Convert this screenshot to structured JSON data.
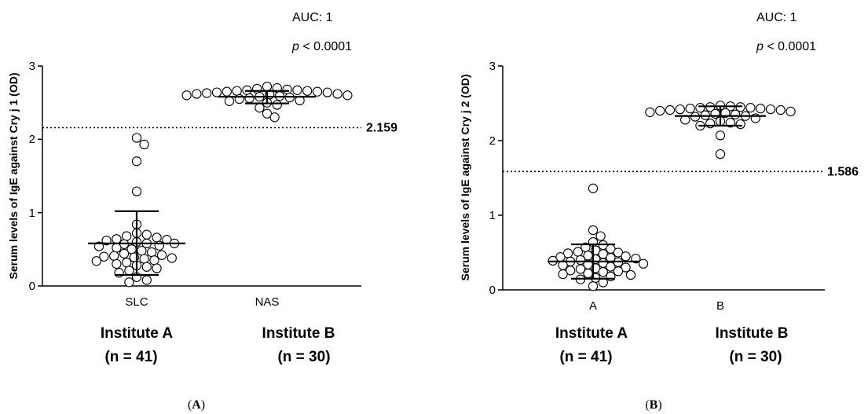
{
  "chart_data": [
    {
      "type": "scatter",
      "panel_label": "A",
      "ylabel": "Serum levels of IgE against Cry j 1 (OD)",
      "ylim": [
        0,
        3
      ],
      "yticks": [
        "0",
        "1",
        "2",
        "3"
      ],
      "categories": [
        "SLC",
        "NAS"
      ],
      "group_labels": [
        {
          "name": "Institute A",
          "n": "(n = 41)"
        },
        {
          "name": "Institute B",
          "n": "(n = 30)"
        }
      ],
      "auc": "AUC: 1",
      "p_prefix": "p",
      "p_rest": " < 0.0001",
      "cutoff": 2.159,
      "cutoff_label": "2.159",
      "summary": [
        {
          "mean": 0.58,
          "sd_low": 0.15,
          "sd_high": 1.02
        },
        {
          "mean": 2.58,
          "sd_low": 2.49,
          "sd_high": 2.66
        }
      ],
      "series": [
        {
          "values": [
            2.02,
            1.93,
            1.7,
            1.29,
            0.84,
            0.72,
            0.7,
            0.68,
            0.66,
            0.64,
            0.63,
            0.62,
            0.6,
            0.58,
            0.58,
            0.57,
            0.55,
            0.54,
            0.52,
            0.5,
            0.48,
            0.46,
            0.44,
            0.42,
            0.41,
            0.4,
            0.39,
            0.38,
            0.37,
            0.35,
            0.34,
            0.32,
            0.3,
            0.28,
            0.26,
            0.24,
            0.21,
            0.18,
            0.12,
            0.08,
            0.05
          ]
        },
        {
          "values": [
            2.72,
            2.7,
            2.69,
            2.68,
            2.67,
            2.67,
            2.66,
            2.66,
            2.65,
            2.65,
            2.64,
            2.64,
            2.63,
            2.62,
            2.62,
            2.61,
            2.6,
            2.6,
            2.59,
            2.58,
            2.57,
            2.56,
            2.55,
            2.53,
            2.52,
            2.5,
            2.47,
            2.43,
            2.35,
            2.3
          ]
        }
      ]
    },
    {
      "type": "scatter",
      "panel_label": "B",
      "ylabel": "Serum levels of IgE against Cry j 2 (OD)",
      "ylim": [
        0,
        3
      ],
      "yticks": [
        "0",
        "1",
        "2",
        "3"
      ],
      "categories": [
        "A",
        "B"
      ],
      "group_labels": [
        {
          "name": "Institute A",
          "n": "(n = 41)"
        },
        {
          "name": "Institute B",
          "n": "(n = 30)"
        }
      ],
      "auc": "AUC: 1",
      "p_prefix": "p",
      "p_rest": " < 0.0001",
      "cutoff": 1.586,
      "cutoff_label": "1.586",
      "summary": [
        {
          "mean": 0.38,
          "sd_low": 0.15,
          "sd_high": 0.61
        },
        {
          "mean": 2.33,
          "sd_low": 2.2,
          "sd_high": 2.46
        }
      ],
      "series": [
        {
          "values": [
            1.36,
            0.8,
            0.72,
            0.64,
            0.6,
            0.57,
            0.55,
            0.53,
            0.51,
            0.5,
            0.49,
            0.48,
            0.46,
            0.45,
            0.44,
            0.43,
            0.42,
            0.41,
            0.4,
            0.39,
            0.38,
            0.37,
            0.36,
            0.35,
            0.34,
            0.33,
            0.31,
            0.3,
            0.29,
            0.28,
            0.26,
            0.25,
            0.24,
            0.22,
            0.21,
            0.2,
            0.18,
            0.16,
            0.14,
            0.1,
            0.05
          ]
        },
        {
          "values": [
            2.47,
            2.46,
            2.45,
            2.45,
            2.44,
            2.44,
            2.43,
            2.43,
            2.42,
            2.42,
            2.41,
            2.41,
            2.4,
            2.39,
            2.38,
            2.37,
            2.36,
            2.35,
            2.34,
            2.33,
            2.32,
            2.3,
            2.28,
            2.26,
            2.24,
            2.23,
            2.22,
            2.2,
            2.07,
            1.82
          ]
        }
      ]
    }
  ]
}
